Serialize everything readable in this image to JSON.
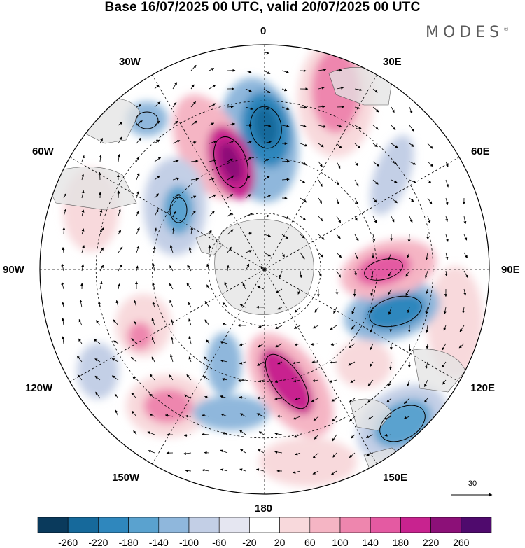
{
  "title": "Base 16/07/2025 00 UTC, valid 20/07/2025 00 UTC",
  "logo": "MODES",
  "logo_mark": "©",
  "longitude_labels": {
    "top": "0",
    "bottom": "180",
    "left": "90W",
    "right": "90E",
    "nw30": "30W",
    "ne30": "30E",
    "nw60": "60W",
    "ne60": "60E",
    "sw120": "120W",
    "se120": "120E",
    "sw150": "150W",
    "se150": "150E"
  },
  "reference_vector": {
    "label": "30"
  },
  "colorbar": {
    "ticks": [
      "-260",
      "-220",
      "-180",
      "-140",
      "-100",
      "-60",
      "-20",
      "20",
      "60",
      "100",
      "140",
      "180",
      "220",
      "260"
    ],
    "colors": [
      "#0a3a5c",
      "#16699b",
      "#2f87bd",
      "#5aa2cf",
      "#8fb7dc",
      "#c3cfe6",
      "#e5e6f1",
      "#ffffff",
      "#f8d9dc",
      "#f5b5c4",
      "#ee86ae",
      "#e45aa2",
      "#c8238f",
      "#8c1078",
      "#4f0a6d"
    ]
  },
  "colors": {
    "land": "#e3e3e3",
    "grid": "#000000",
    "coast": "#555555"
  }
}
